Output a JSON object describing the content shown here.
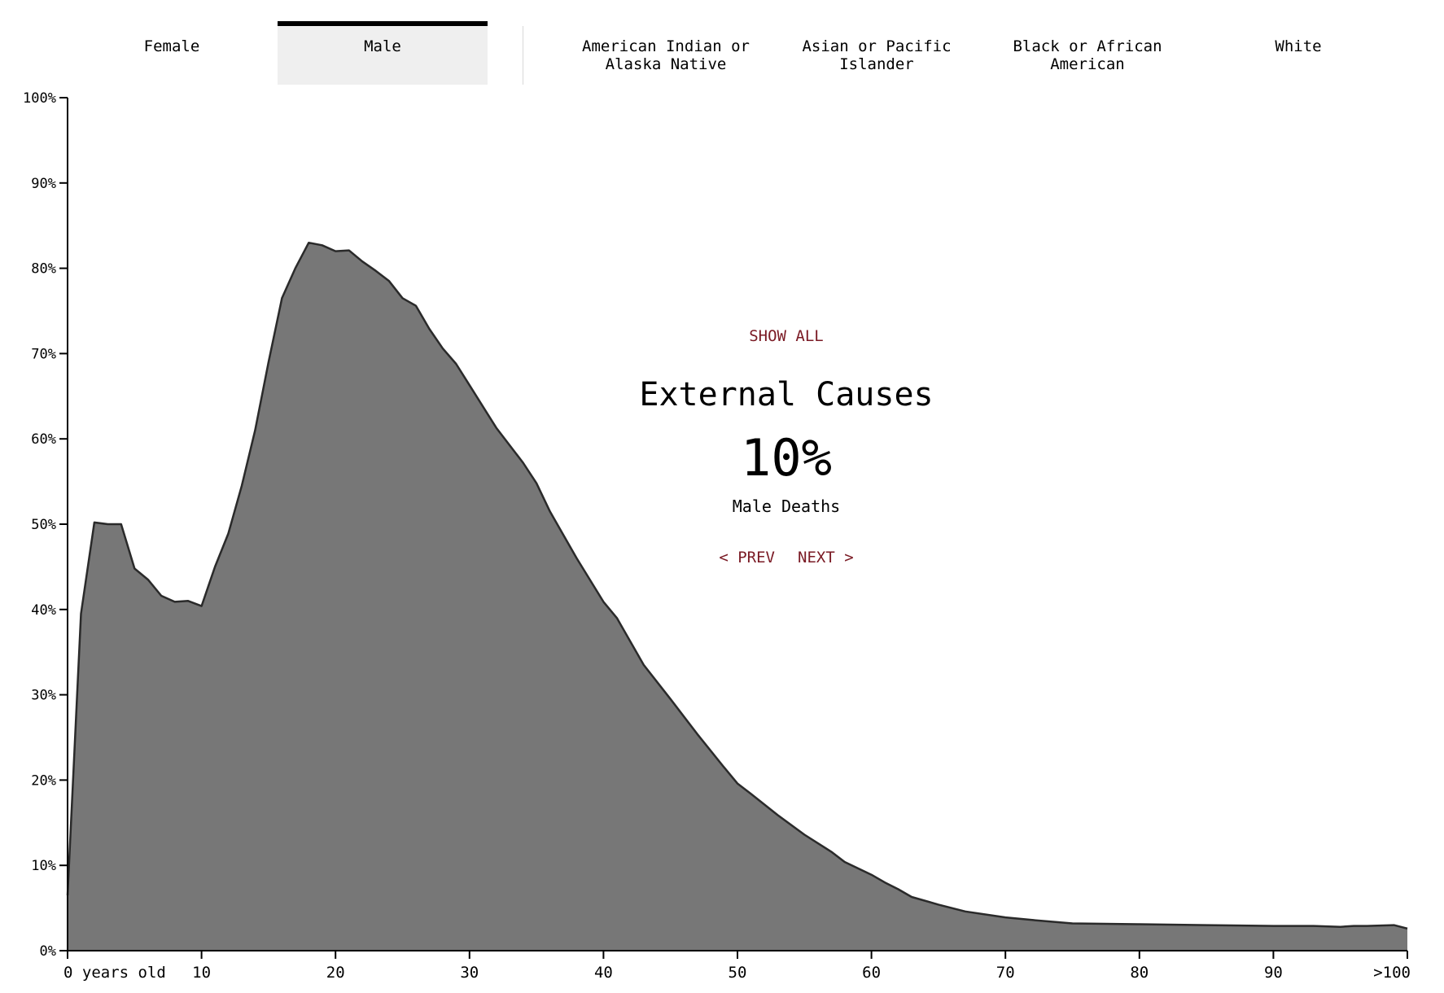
{
  "tabs": {
    "sex": [
      {
        "label": "Female",
        "active": false
      },
      {
        "label": "Male",
        "active": true
      }
    ],
    "race": [
      {
        "label": "American Indian or\nAlaska Native"
      },
      {
        "label": "Asian or Pacific\nIslander"
      },
      {
        "label": "Black or African\nAmerican"
      },
      {
        "label": "White"
      }
    ]
  },
  "overlay": {
    "show_all": "SHOW ALL",
    "cause": "External Causes",
    "percent": "10%",
    "subtitle": "Male Deaths",
    "prev": "< PREV",
    "next": "NEXT >"
  },
  "chart_data": {
    "type": "area",
    "title": "External Causes",
    "xlabel": "",
    "ylabel": "",
    "xlim": [
      0,
      100
    ],
    "ylim": [
      0,
      100
    ],
    "grid": false,
    "x_ticks": [
      0,
      10,
      20,
      30,
      40,
      50,
      60,
      70,
      80,
      90,
      100
    ],
    "x_tick_labels": [
      "0 years old",
      "10",
      "20",
      "30",
      "40",
      "50",
      "60",
      "70",
      "80",
      "90",
      ">100"
    ],
    "y_ticks": [
      0,
      10,
      20,
      30,
      40,
      50,
      60,
      70,
      80,
      90,
      100
    ],
    "y_tick_labels": [
      "0%",
      "10%",
      "20%",
      "30%",
      "40%",
      "50%",
      "60%",
      "70%",
      "80%",
      "90%",
      "100%"
    ],
    "fill_color": "#777777",
    "stroke_color": "#2a2a2a",
    "series": [
      {
        "x": [
          0,
          1,
          2,
          3,
          4,
          5,
          6,
          7,
          8,
          9,
          10,
          11,
          12,
          13,
          14,
          15,
          16,
          17,
          18,
          19,
          20,
          21,
          22,
          23,
          24,
          25,
          26,
          27,
          28,
          29,
          30,
          32,
          34,
          35,
          36,
          38,
          40,
          41,
          43,
          45,
          47,
          49,
          50,
          51,
          53,
          55,
          57,
          58,
          60,
          61,
          62,
          63,
          65,
          67,
          70,
          72,
          75,
          80,
          85,
          90,
          93,
          95,
          96,
          97,
          99,
          100
        ],
        "y": [
          6.5,
          39.5,
          50.2,
          50.0,
          50.0,
          44.8,
          43.5,
          41.6,
          40.9,
          41.0,
          40.4,
          45.0,
          48.9,
          54.5,
          61.0,
          69.0,
          76.5,
          80.0,
          83.0,
          82.7,
          82.0,
          82.1,
          80.8,
          79.7,
          78.5,
          76.5,
          75.6,
          72.9,
          70.6,
          68.8,
          66.3,
          61.3,
          57.2,
          54.8,
          51.5,
          46.0,
          40.9,
          39.0,
          33.5,
          29.5,
          25.4,
          21.5,
          19.6,
          18.4,
          15.9,
          13.6,
          11.6,
          10.4,
          8.9,
          8.0,
          7.2,
          6.3,
          5.4,
          4.6,
          3.9,
          3.6,
          3.2,
          3.1,
          3.0,
          2.9,
          2.9,
          2.8,
          2.9,
          2.9,
          3.0,
          2.6
        ]
      }
    ]
  }
}
